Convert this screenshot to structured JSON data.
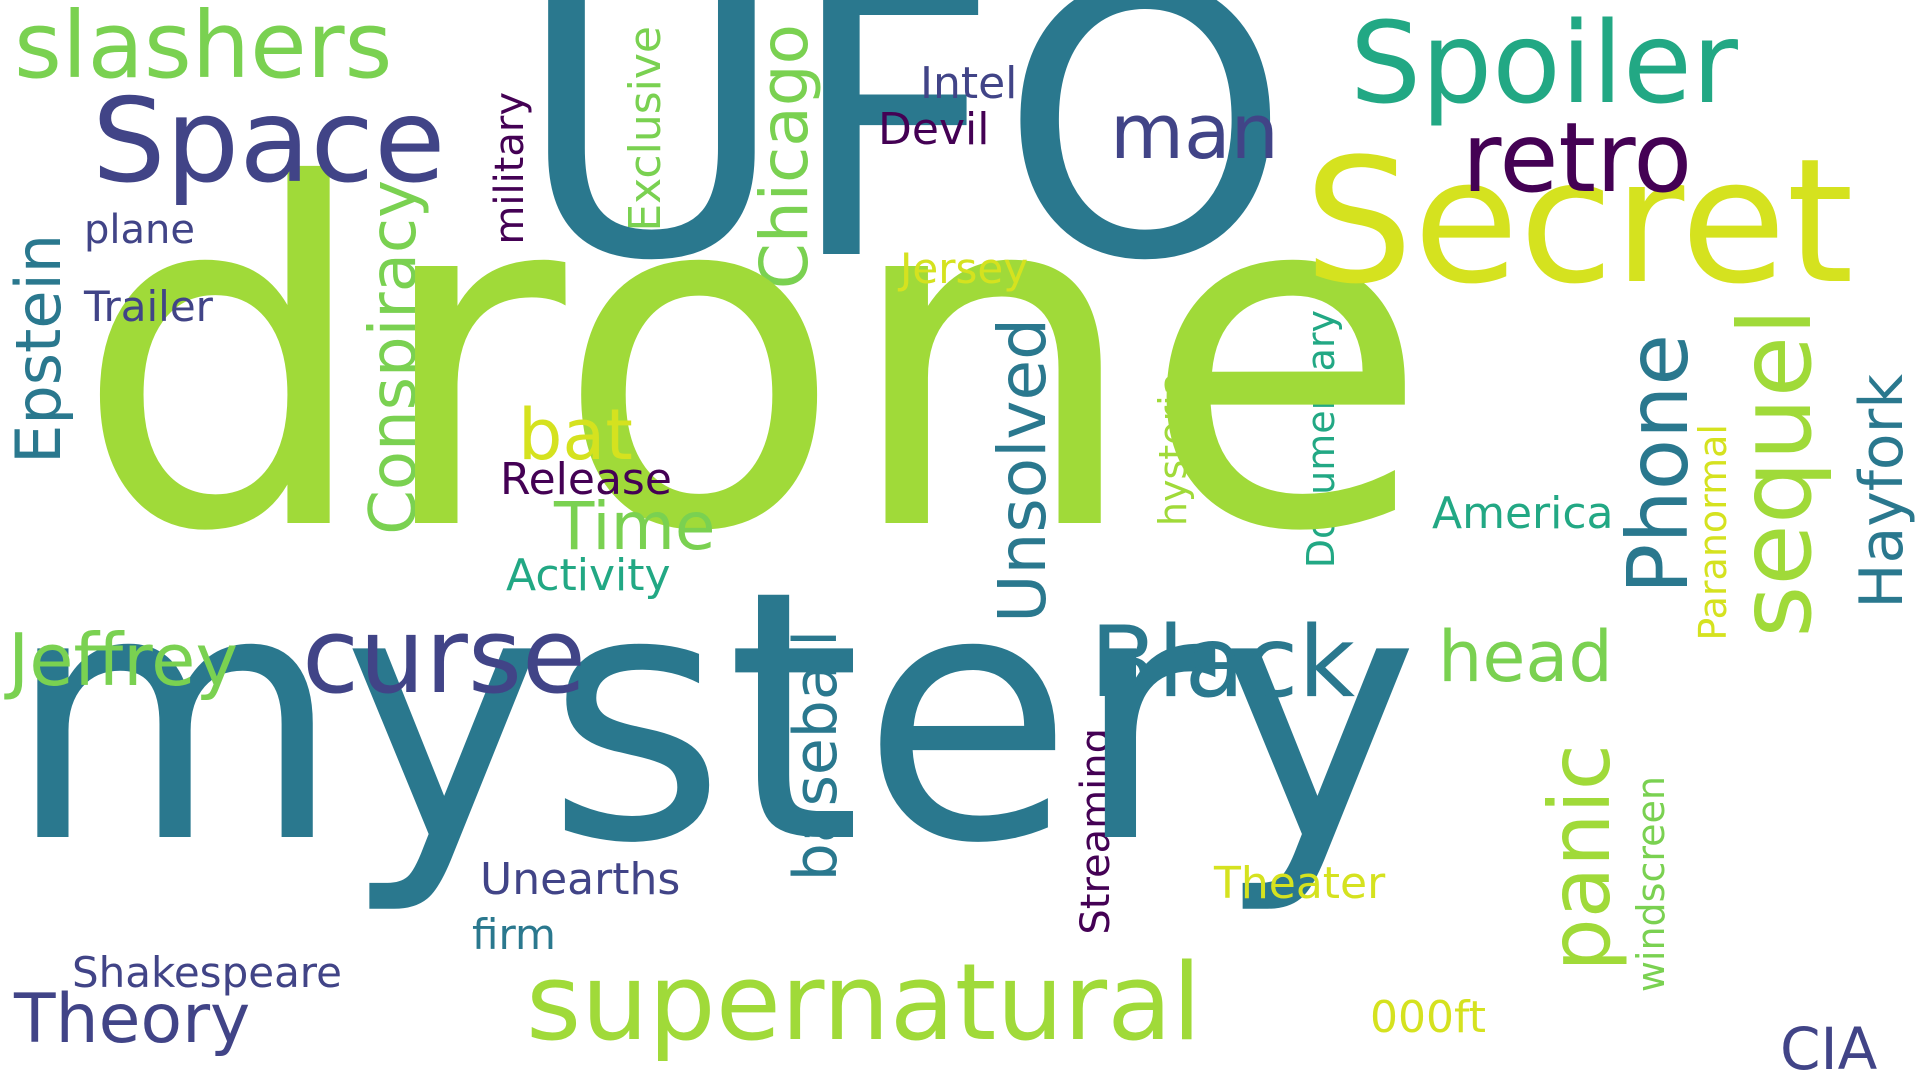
{
  "palette": {
    "dark_purple": "#440154",
    "indigo": "#414487",
    "blue": "#2a788e",
    "teal": "#22a884",
    "green": "#7ad151",
    "lime": "#a0da39",
    "yellow": "#d5e21f"
  },
  "words": {
    "drone": "drone",
    "mystery": "mystery",
    "ufo": "UFO",
    "secret": "Secret",
    "spoiler": "Spoiler",
    "slashers": "slashers",
    "space": "Space",
    "retro": "retro",
    "man": "man",
    "intel": "Intel",
    "devil": "Devil",
    "chicago": "Chicago",
    "exclusive": "Exclusive",
    "military": "military",
    "plane": "plane",
    "trailer": "Trailer",
    "epstein": "Epstein",
    "conspiracy": "Conspiracy",
    "jersey": "Jersey",
    "bat": "bat",
    "release": "Release",
    "time": "Time",
    "activity": "Activity",
    "unsolved": "Unsolved",
    "hysteria": "hysteria",
    "documentary": "Documentary",
    "america": "America",
    "paranormal": "Paranormal",
    "phone": "Phone",
    "sequel": "sequel",
    "hayfork": "Hayfork",
    "jeffrey": "Jeffrey",
    "curse": "curse",
    "black": "Black",
    "head": "head",
    "baseball": "baseball",
    "panic": "panic",
    "streaming": "Streaming",
    "windscreen": "windscreen",
    "theater": "Theater",
    "unearths": "Unearths",
    "firm": "firm",
    "shakespeare": "Shakespeare",
    "theory": "Theory",
    "supernatural": "supernatural",
    "ooft": "000ft",
    "cia": "CIA"
  }
}
